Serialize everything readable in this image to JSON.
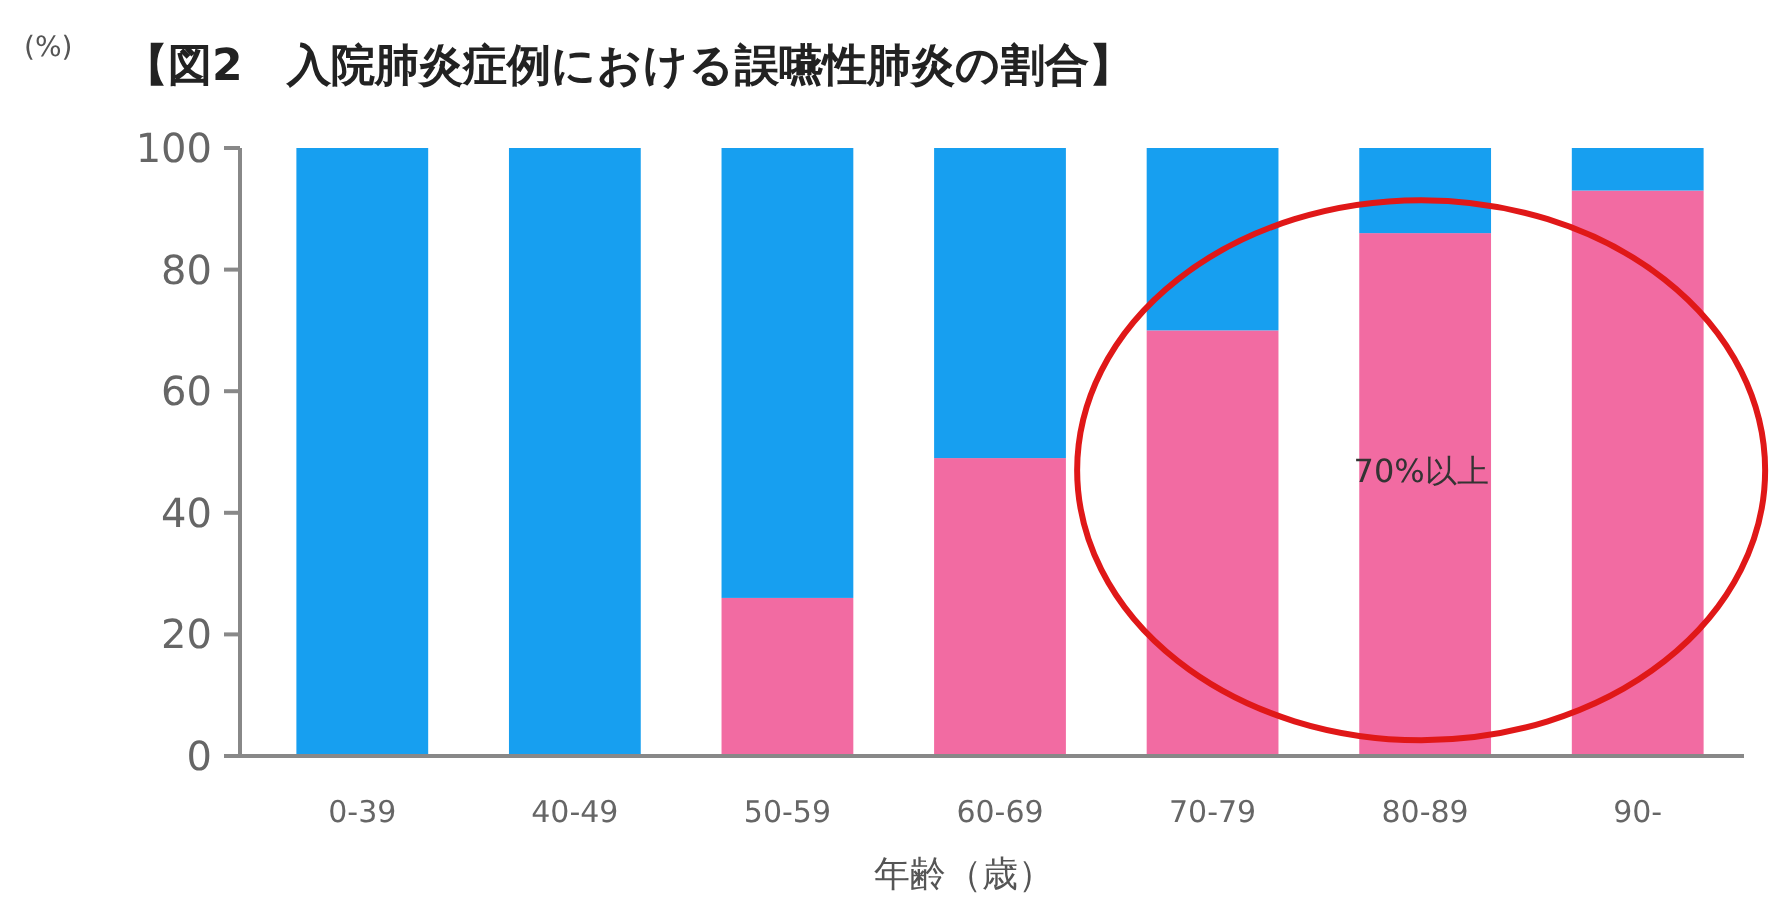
{
  "chart_data": {
    "type": "bar",
    "stacked": true,
    "title": "【図2　入院肺炎症例における誤嚥性肺炎の割合】",
    "ylabel": "(%)",
    "xlabel": "年齢（歳）",
    "categories": [
      "0-39",
      "40-49",
      "50-59",
      "60-69",
      "70-79",
      "80-89",
      "90-"
    ],
    "series": [
      {
        "color": "#f26ba2",
        "values": [
          0,
          0,
          26,
          49,
          70,
          86,
          93
        ]
      },
      {
        "color": "#179ff0",
        "values": [
          100,
          100,
          74,
          51,
          30,
          14,
          7
        ]
      }
    ],
    "ylim": [
      0,
      100
    ],
    "yticks": [
      0,
      20,
      40,
      60,
      80,
      100
    ],
    "annotations": [
      "70%以上"
    ]
  }
}
